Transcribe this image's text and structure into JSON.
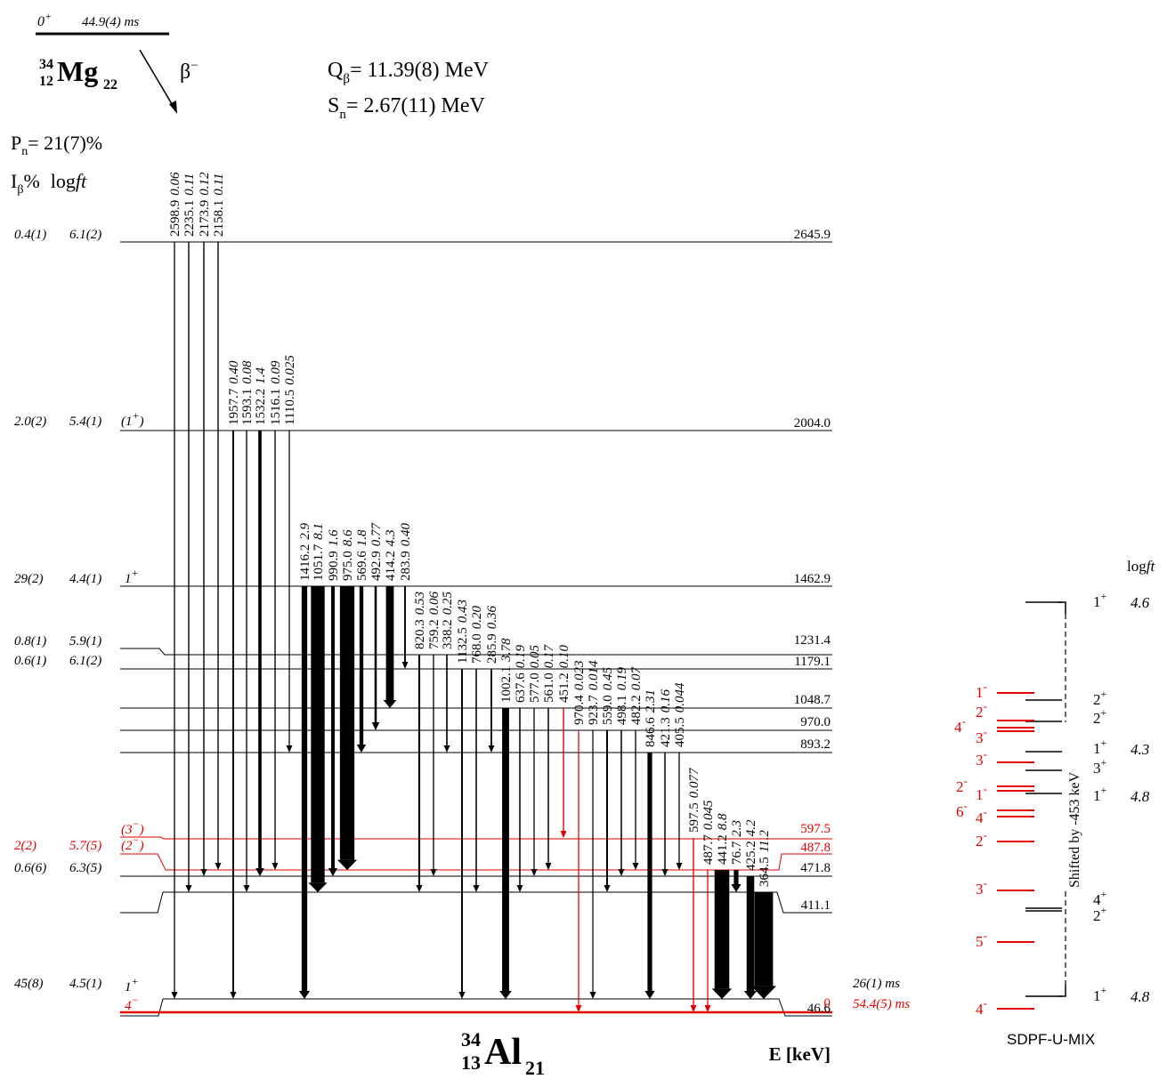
{
  "parent": {
    "spin": "0",
    "parity": "+",
    "half_life": "44.9(4) ms",
    "mass": "34",
    "z": "12",
    "symbol": "Mg",
    "n": "22",
    "beta": "β",
    "beta_sign": "−"
  },
  "q_beta": {
    "label": "Q",
    "sub": "β",
    "value": "= 11.39(8) MeV"
  },
  "s_n": {
    "label": "S",
    "sub": "n",
    "value": "= 2.67(11) MeV"
  },
  "p_n": {
    "label": "P",
    "sub": "n",
    "value": "= 21(7)%"
  },
  "header": {
    "ib": "I",
    "ib_sub": "β",
    "ib_pct": "%",
    "logft": "log",
    "logft_ft": "ft"
  },
  "daughter": {
    "mass": "34",
    "z": "13",
    "symbol": "Al",
    "n": "21"
  },
  "energy_axis": "E [keV]",
  "shell_model": {
    "name": "SDPF-U-MIX",
    "logft_header": "log",
    "logft_header_ft": "ft",
    "shift_note": "Shifted by -453 keV",
    "black_levels": [
      {
        "spin": "1",
        "parity": "+",
        "logft": "4.6"
      },
      {
        "spin": "2",
        "parity": "+",
        "logft": ""
      },
      {
        "spin": "2",
        "parity": "+",
        "logft": ""
      },
      {
        "spin": "1",
        "parity": "+",
        "logft": "4.3"
      },
      {
        "spin": "3",
        "parity": "+",
        "logft": ""
      },
      {
        "spin": "1",
        "parity": "+",
        "logft": "4.8"
      },
      {
        "spin": "4",
        "parity": "+",
        "logft": ""
      },
      {
        "spin": "2",
        "parity": "+",
        "logft": ""
      },
      {
        "spin": "1",
        "parity": "+",
        "logft": "4.8"
      }
    ],
    "red_levels": [
      {
        "spin": "1",
        "parity": "-"
      },
      {
        "spin": "2",
        "parity": "-"
      },
      {
        "spin": "4",
        "parity": "-"
      },
      {
        "spin": "3",
        "parity": "-"
      },
      {
        "spin": "3",
        "parity": "-"
      },
      {
        "spin": "2",
        "parity": "-"
      },
      {
        "spin": "1",
        "parity": "-"
      },
      {
        "spin": "6",
        "parity": "-"
      },
      {
        "spin": "4",
        "parity": "-"
      },
      {
        "spin": "2",
        "parity": "-"
      },
      {
        "spin": "3",
        "parity": "-"
      },
      {
        "spin": "5",
        "parity": "-"
      },
      {
        "spin": "4",
        "parity": "-"
      }
    ]
  },
  "levels": [
    {
      "energy": "2645.9",
      "ib": "0.4(1)",
      "logft": "6.1(2)",
      "jpi": "",
      "jpi_sup": "",
      "half_life": "",
      "color": "#000000"
    },
    {
      "energy": "2004.0",
      "ib": "2.0(2)",
      "logft": "5.4(1)",
      "jpi": "(1",
      "jpi_sup": "+",
      "jpi_close": ")",
      "half_life": "",
      "color": "#000000"
    },
    {
      "energy": "1462.9",
      "ib": "29(2)",
      "logft": "4.4(1)",
      "jpi": "1",
      "jpi_sup": "+",
      "half_life": "",
      "color": "#000000"
    },
    {
      "energy": "1231.4",
      "ib": "0.8(1)",
      "logft": "5.9(1)",
      "jpi": "",
      "jpi_sup": "",
      "half_life": "",
      "color": "#000000"
    },
    {
      "energy": "1179.1",
      "ib": "0.6(1)",
      "logft": "6.1(2)",
      "jpi": "",
      "jpi_sup": "",
      "half_life": "",
      "color": "#000000"
    },
    {
      "energy": "1048.7",
      "ib": "",
      "logft": "",
      "jpi": "",
      "jpi_sup": "",
      "half_life": "",
      "color": "#000000"
    },
    {
      "energy": "970.0",
      "ib": "",
      "logft": "",
      "jpi": "",
      "jpi_sup": "",
      "half_life": "",
      "color": "#000000"
    },
    {
      "energy": "893.2",
      "ib": "",
      "logft": "",
      "jpi": "",
      "jpi_sup": "",
      "half_life": "",
      "color": "#000000"
    },
    {
      "energy": "597.5",
      "ib": "",
      "logft": "",
      "jpi": "(3",
      "jpi_sup": "−",
      "jpi_close": ")",
      "half_life": "",
      "color": "#e00000"
    },
    {
      "energy": "487.8",
      "ib": "2(2)",
      "logft": "5.7(5)",
      "jpi": "(2",
      "jpi_sup": "−",
      "jpi_close": ")",
      "half_life": "",
      "color": "#e00000"
    },
    {
      "energy": "471.8",
      "ib": "0.6(6)",
      "logft": "6.3(5)",
      "jpi": "",
      "jpi_sup": "",
      "half_life": "",
      "color": "#000000"
    },
    {
      "energy": "411.1",
      "ib": "",
      "logft": "",
      "jpi": "",
      "jpi_sup": "",
      "half_life": "",
      "color": "#000000"
    },
    {
      "energy": "46.6",
      "ib": "45(8)",
      "logft": "4.5(1)",
      "jpi": "1",
      "jpi_sup": "+",
      "half_life": "26(1) ms",
      "color": "#000000"
    },
    {
      "energy": "0",
      "ib": "",
      "logft": "",
      "jpi": "4",
      "jpi_sup": "−",
      "half_life": "54.4(5) ms",
      "color": "#e00000"
    }
  ],
  "transitions": [
    {
      "energy": "2598.9",
      "intensity": "0.06",
      "from": "2645.9",
      "to": "46.6",
      "color": "#000000"
    },
    {
      "energy": "2235.1",
      "intensity": "0.11",
      "from": "2645.9",
      "to": "411.1",
      "color": "#000000"
    },
    {
      "energy": "2173.9",
      "intensity": "0.12",
      "from": "2645.9",
      "to": "471.8",
      "color": "#000000"
    },
    {
      "energy": "2158.1",
      "intensity": "0.11",
      "from": "2645.9",
      "to": "487.8",
      "color": "#000000"
    },
    {
      "energy": "1957.7",
      "intensity": "0.40",
      "from": "2004.0",
      "to": "46.6",
      "color": "#000000"
    },
    {
      "energy": "1593.1",
      "intensity": "0.08",
      "from": "2004.0",
      "to": "411.1",
      "color": "#000000"
    },
    {
      "energy": "1532.2",
      "intensity": "1.4",
      "from": "2004.0",
      "to": "471.8",
      "color": "#000000"
    },
    {
      "energy": "1516.1",
      "intensity": "0.09",
      "from": "2004.0",
      "to": "487.8",
      "color": "#000000"
    },
    {
      "energy": "1110.5",
      "intensity": "0.025",
      "from": "2004.0",
      "to": "893.2",
      "color": "#000000"
    },
    {
      "energy": "1416.2",
      "intensity": "2.9",
      "from": "1462.9",
      "to": "46.6",
      "color": "#000000"
    },
    {
      "energy": "1051.7",
      "intensity": "8.1",
      "from": "1462.9",
      "to": "411.1",
      "color": "#000000"
    },
    {
      "energy": "990.9",
      "intensity": "1.6",
      "from": "1462.9",
      "to": "471.8",
      "color": "#000000"
    },
    {
      "energy": "975.0",
      "intensity": "8.6",
      "from": "1462.9",
      "to": "487.8",
      "color": "#000000"
    },
    {
      "energy": "569.6",
      "intensity": "1.8",
      "from": "1462.9",
      "to": "893.2",
      "color": "#000000"
    },
    {
      "energy": "492.9",
      "intensity": "0.77",
      "from": "1462.9",
      "to": "970.0",
      "color": "#000000"
    },
    {
      "energy": "414.2",
      "intensity": "4.3",
      "from": "1462.9",
      "to": "1048.7",
      "color": "#000000"
    },
    {
      "energy": "283.9",
      "intensity": "0.40",
      "from": "1462.9",
      "to": "1179.1",
      "color": "#000000"
    },
    {
      "energy": "820.3",
      "intensity": "0.53",
      "from": "1231.4",
      "to": "411.1",
      "color": "#000000"
    },
    {
      "energy": "759.2",
      "intensity": "0.06",
      "from": "1231.4",
      "to": "471.8",
      "color": "#000000"
    },
    {
      "energy": "338.2",
      "intensity": "0.25",
      "from": "1231.4",
      "to": "893.2",
      "color": "#000000"
    },
    {
      "energy": "1132.5",
      "intensity": "0.43",
      "from": "1179.1",
      "to": "46.6",
      "color": "#000000"
    },
    {
      "energy": "768.0",
      "intensity": "0.20",
      "from": "1179.1",
      "to": "411.1",
      "color": "#000000"
    },
    {
      "energy": "285.9",
      "intensity": "0.36",
      "from": "1179.1",
      "to": "893.2",
      "color": "#000000"
    },
    {
      "energy": "1002.1",
      "intensity": "3.78",
      "from": "1048.7",
      "to": "46.6",
      "color": "#000000"
    },
    {
      "energy": "637.6",
      "intensity": "0.19",
      "from": "1048.7",
      "to": "411.1",
      "color": "#000000"
    },
    {
      "energy": "577.0",
      "intensity": "0.05",
      "from": "1048.7",
      "to": "471.8",
      "color": "#000000"
    },
    {
      "energy": "561.0",
      "intensity": "0.17",
      "from": "1048.7",
      "to": "487.8",
      "color": "#000000"
    },
    {
      "energy": "451.2",
      "intensity": "0.10",
      "from": "1048.7",
      "to": "597.5",
      "color": "#e00000"
    },
    {
      "energy": "970.4",
      "intensity": "0.023",
      "from": "970.0",
      "to": "0",
      "color": "#e00000"
    },
    {
      "energy": "923.7",
      "intensity": "0.014",
      "from": "970.0",
      "to": "46.6",
      "color": "#000000"
    },
    {
      "energy": "559.0",
      "intensity": "0.45",
      "from": "970.0",
      "to": "411.1",
      "color": "#000000"
    },
    {
      "energy": "498.1",
      "intensity": "0.19",
      "from": "970.0",
      "to": "471.8",
      "color": "#000000"
    },
    {
      "energy": "482.2",
      "intensity": "0.07",
      "from": "970.0",
      "to": "487.8",
      "color": "#000000"
    },
    {
      "energy": "846.6",
      "intensity": "2.31",
      "from": "893.2",
      "to": "46.6",
      "color": "#000000"
    },
    {
      "energy": "421.3",
      "intensity": "0.16",
      "from": "893.2",
      "to": "471.8",
      "color": "#000000"
    },
    {
      "energy": "405.5",
      "intensity": "0.044",
      "from": "893.2",
      "to": "487.8",
      "color": "#000000"
    },
    {
      "energy": "597.5",
      "intensity": "0.077",
      "from": "597.5",
      "to": "0",
      "color": "#e00000"
    },
    {
      "energy": "487.7",
      "intensity": "0.045",
      "from": "487.8",
      "to": "0",
      "color": "#e00000"
    },
    {
      "energy": "441.2",
      "intensity": "8.8",
      "from": "487.8",
      "to": "46.6",
      "color": "#000000"
    },
    {
      "energy": "76.7",
      "intensity": "2.3",
      "from": "487.8",
      "to": "411.1",
      "color": "#000000"
    },
    {
      "energy": "425.2",
      "intensity": "4.2",
      "from": "471.8",
      "to": "46.6",
      "color": "#000000"
    },
    {
      "energy": "364.5",
      "intensity": "11.2",
      "from": "411.1",
      "to": "46.6",
      "color": "#000000"
    }
  ]
}
